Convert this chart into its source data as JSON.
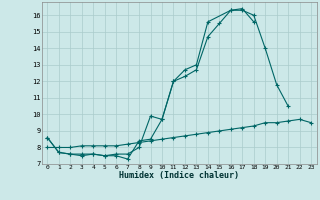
{
  "xlabel": "Humidex (Indice chaleur)",
  "bg_color": "#cce8e8",
  "grid_color": "#aacccc",
  "line_color": "#006666",
  "xlim": [
    -0.5,
    23.5
  ],
  "ylim": [
    7,
    16.8
  ],
  "yticks": [
    7,
    8,
    9,
    10,
    11,
    12,
    13,
    14,
    15,
    16
  ],
  "xticks": [
    0,
    1,
    2,
    3,
    4,
    5,
    6,
    7,
    8,
    9,
    10,
    11,
    12,
    13,
    14,
    15,
    16,
    17,
    18,
    19,
    20,
    21,
    22,
    23
  ],
  "line1_x": [
    0,
    1,
    2,
    3,
    4,
    5,
    6,
    7,
    8,
    9,
    10,
    11,
    12,
    13,
    14,
    15,
    16,
    17,
    18,
    19,
    20,
    21
  ],
  "line1_y": [
    8.6,
    7.7,
    7.6,
    7.5,
    7.6,
    7.5,
    7.5,
    7.3,
    8.4,
    8.5,
    9.7,
    12.0,
    12.3,
    12.7,
    14.7,
    15.5,
    16.3,
    16.3,
    16.0,
    14.0,
    11.8,
    10.5
  ],
  "line2_x": [
    0,
    1,
    2,
    3,
    4,
    5,
    6,
    7,
    8,
    9,
    10,
    11,
    12,
    13,
    14,
    16,
    17,
    18
  ],
  "line2_y": [
    8.6,
    7.7,
    7.6,
    7.6,
    7.6,
    7.5,
    7.6,
    7.6,
    8.0,
    9.9,
    9.7,
    12.0,
    12.7,
    13.0,
    15.6,
    16.3,
    16.4,
    15.6
  ],
  "line3_x": [
    0,
    1,
    2,
    3,
    4,
    5,
    6,
    7,
    8,
    9,
    10,
    11,
    12,
    13,
    14,
    15,
    16,
    17,
    18,
    19,
    20,
    21,
    22,
    23
  ],
  "line3_y": [
    8.0,
    8.0,
    8.0,
    8.1,
    8.1,
    8.1,
    8.1,
    8.2,
    8.3,
    8.4,
    8.5,
    8.6,
    8.7,
    8.8,
    8.9,
    9.0,
    9.1,
    9.2,
    9.3,
    9.5,
    9.5,
    9.6,
    9.7,
    9.5
  ]
}
